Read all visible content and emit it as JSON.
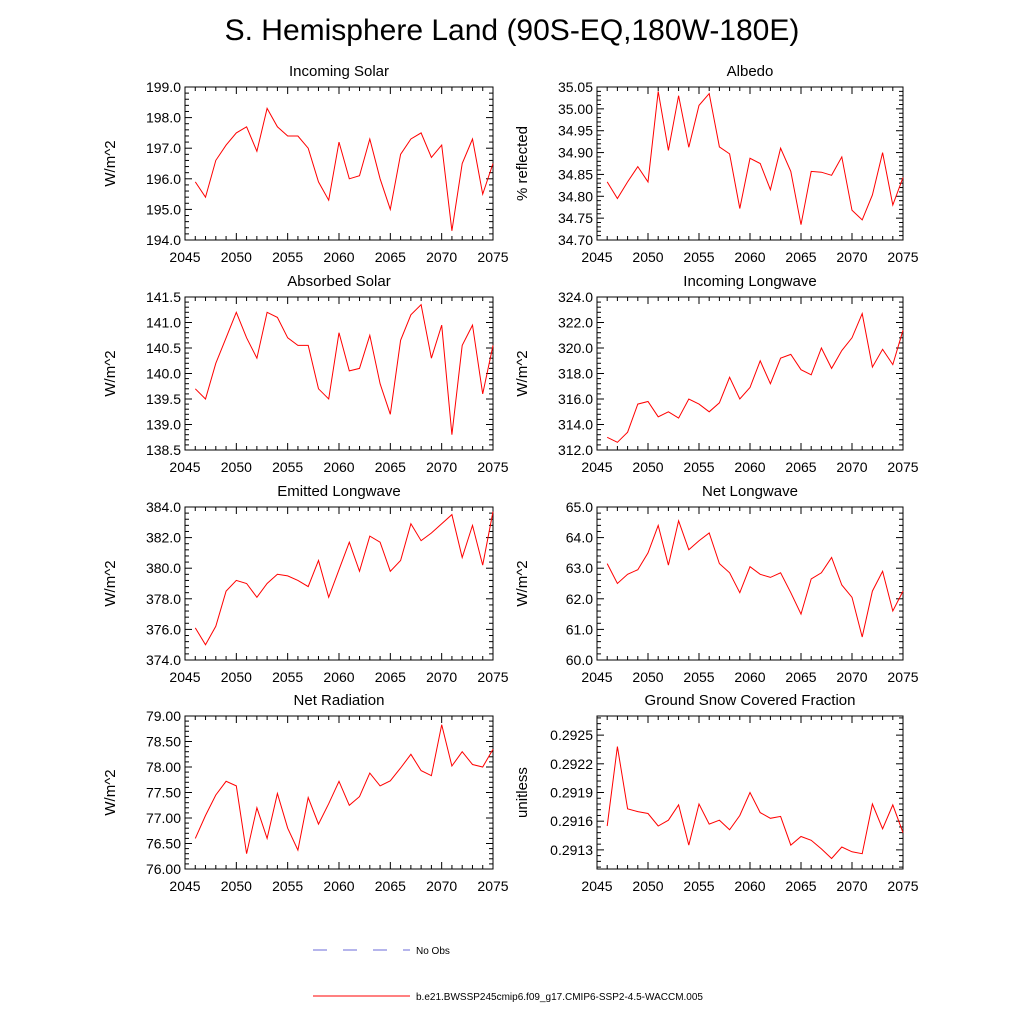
{
  "page_title": "S. Hemisphere Land (90S-EQ,180W-180E)",
  "chart_data": [
    {
      "type": "line",
      "title": "Incoming Solar",
      "ylabel": "W/m^2",
      "xlim": [
        2045,
        2075
      ],
      "ylim": [
        194.0,
        199.0
      ],
      "yticks": [
        "194.0",
        "195.0",
        "196.0",
        "197.0",
        "198.0",
        "199.0"
      ],
      "xticks": [
        "2045",
        "2050",
        "2055",
        "2060",
        "2065",
        "2070",
        "2075"
      ],
      "x": [
        2046,
        2047,
        2048,
        2049,
        2050,
        2051,
        2052,
        2053,
        2054,
        2055,
        2056,
        2057,
        2058,
        2059,
        2060,
        2061,
        2062,
        2063,
        2064,
        2065,
        2066,
        2067,
        2068,
        2069,
        2070,
        2071,
        2072,
        2073,
        2074,
        2075
      ],
      "series": [
        {
          "name": "b.e21.BWSSP245cmip6.f09_g17.CMIP6-SSP2-4.5-WACCM.005",
          "values": [
            195.9,
            195.4,
            196.6,
            197.1,
            197.5,
            197.7,
            196.9,
            198.3,
            197.7,
            197.4,
            197.4,
            197.0,
            195.9,
            195.3,
            197.2,
            196.0,
            196.1,
            197.3,
            196.0,
            195.0,
            196.8,
            197.3,
            197.5,
            196.7,
            197.1,
            194.3,
            196.5,
            197.3,
            195.5,
            196.5
          ]
        }
      ]
    },
    {
      "type": "line",
      "title": "Albedo",
      "ylabel": "% reflected",
      "xlim": [
        2045,
        2075
      ],
      "ylim": [
        34.7,
        35.05
      ],
      "yticks": [
        "34.70",
        "34.75",
        "34.80",
        "34.85",
        "34.90",
        "34.95",
        "35.00",
        "35.05"
      ],
      "xticks": [
        "2045",
        "2050",
        "2055",
        "2060",
        "2065",
        "2070",
        "2075"
      ],
      "x": [
        2046,
        2047,
        2048,
        2049,
        2050,
        2051,
        2052,
        2053,
        2054,
        2055,
        2056,
        2057,
        2058,
        2059,
        2060,
        2061,
        2062,
        2063,
        2064,
        2065,
        2066,
        2067,
        2068,
        2069,
        2070,
        2071,
        2072,
        2073,
        2074,
        2075
      ],
      "series": [
        {
          "name": "b.e21.BWSSP245cmip6.f09_g17.CMIP6-SSP2-4.5-WACCM.005",
          "values": [
            34.833,
            34.795,
            34.833,
            34.868,
            34.833,
            35.04,
            34.905,
            35.03,
            34.912,
            35.008,
            35.035,
            34.913,
            34.897,
            34.772,
            34.887,
            34.875,
            34.815,
            34.91,
            34.857,
            34.735,
            34.857,
            34.855,
            34.848,
            34.89,
            34.768,
            34.746,
            34.803,
            34.9,
            34.78,
            34.843
          ]
        }
      ]
    },
    {
      "type": "line",
      "title": "Absorbed Solar",
      "ylabel": "W/m^2",
      "xlim": [
        2045,
        2075
      ],
      "ylim": [
        138.5,
        141.5
      ],
      "yticks": [
        "138.5",
        "139.0",
        "139.5",
        "140.0",
        "140.5",
        "141.0",
        "141.5"
      ],
      "xticks": [
        "2045",
        "2050",
        "2055",
        "2060",
        "2065",
        "2070",
        "2075"
      ],
      "x": [
        2046,
        2047,
        2048,
        2049,
        2050,
        2051,
        2052,
        2053,
        2054,
        2055,
        2056,
        2057,
        2058,
        2059,
        2060,
        2061,
        2062,
        2063,
        2064,
        2065,
        2066,
        2067,
        2068,
        2069,
        2070,
        2071,
        2072,
        2073,
        2074,
        2075
      ],
      "series": [
        {
          "name": "b.e21.BWSSP245cmip6.f09_g17.CMIP6-SSP2-4.5-WACCM.005",
          "values": [
            139.7,
            139.5,
            140.2,
            140.7,
            141.2,
            140.7,
            140.3,
            141.2,
            141.1,
            140.7,
            140.55,
            140.55,
            139.7,
            139.5,
            140.8,
            140.05,
            140.1,
            140.75,
            139.8,
            139.2,
            140.65,
            141.15,
            141.35,
            140.3,
            140.95,
            138.8,
            140.55,
            140.95,
            139.6,
            140.55
          ]
        }
      ]
    },
    {
      "type": "line",
      "title": "Incoming Longwave",
      "ylabel": "W/m^2",
      "xlim": [
        2045,
        2075
      ],
      "ylim": [
        312.0,
        324.0
      ],
      "yticks": [
        "312.0",
        "314.0",
        "316.0",
        "318.0",
        "320.0",
        "322.0",
        "324.0"
      ],
      "xticks": [
        "2045",
        "2050",
        "2055",
        "2060",
        "2065",
        "2070",
        "2075"
      ],
      "x": [
        2046,
        2047,
        2048,
        2049,
        2050,
        2051,
        2052,
        2053,
        2054,
        2055,
        2056,
        2057,
        2058,
        2059,
        2060,
        2061,
        2062,
        2063,
        2064,
        2065,
        2066,
        2067,
        2068,
        2069,
        2070,
        2071,
        2072,
        2073,
        2074,
        2075
      ],
      "series": [
        {
          "name": "b.e21.BWSSP245cmip6.f09_g17.CMIP6-SSP2-4.5-WACCM.005",
          "values": [
            313.0,
            312.6,
            313.4,
            315.6,
            315.8,
            314.6,
            315.0,
            314.5,
            316.0,
            315.6,
            315.0,
            315.7,
            317.7,
            316.0,
            316.9,
            319.0,
            317.2,
            319.2,
            319.5,
            318.3,
            317.9,
            320.0,
            318.4,
            319.8,
            320.8,
            322.7,
            318.5,
            319.9,
            318.7,
            321.4
          ]
        }
      ]
    },
    {
      "type": "line",
      "title": "Emitted Longwave",
      "ylabel": "W/m^2",
      "xlim": [
        2045,
        2075
      ],
      "ylim": [
        374.0,
        384.0
      ],
      "yticks": [
        "374.0",
        "376.0",
        "378.0",
        "380.0",
        "382.0",
        "384.0"
      ],
      "xticks": [
        "2045",
        "2050",
        "2055",
        "2060",
        "2065",
        "2070",
        "2075"
      ],
      "x": [
        2046,
        2047,
        2048,
        2049,
        2050,
        2051,
        2052,
        2053,
        2054,
        2055,
        2056,
        2057,
        2058,
        2059,
        2060,
        2061,
        2062,
        2063,
        2064,
        2065,
        2066,
        2067,
        2068,
        2069,
        2070,
        2071,
        2072,
        2073,
        2074,
        2075
      ],
      "series": [
        {
          "name": "b.e21.BWSSP245cmip6.f09_g17.CMIP6-SSP2-4.5-WACCM.005",
          "values": [
            376.1,
            375.0,
            376.2,
            378.5,
            379.2,
            379.0,
            378.1,
            379.0,
            379.6,
            379.5,
            379.2,
            378.8,
            380.5,
            378.1,
            379.9,
            381.7,
            379.8,
            382.1,
            381.7,
            379.8,
            380.5,
            382.9,
            381.8,
            382.3,
            382.9,
            383.5,
            380.7,
            382.8,
            380.2,
            383.7
          ]
        }
      ]
    },
    {
      "type": "line",
      "title": "Net Longwave",
      "ylabel": "W/m^2",
      "xlim": [
        2045,
        2075
      ],
      "ylim": [
        60.0,
        65.0
      ],
      "yticks": [
        "60.0",
        "61.0",
        "62.0",
        "63.0",
        "64.0",
        "65.0"
      ],
      "xticks": [
        "2045",
        "2050",
        "2055",
        "2060",
        "2065",
        "2070",
        "2075"
      ],
      "x": [
        2046,
        2047,
        2048,
        2049,
        2050,
        2051,
        2052,
        2053,
        2054,
        2055,
        2056,
        2057,
        2058,
        2059,
        2060,
        2061,
        2062,
        2063,
        2064,
        2065,
        2066,
        2067,
        2068,
        2069,
        2070,
        2071,
        2072,
        2073,
        2074,
        2075
      ],
      "series": [
        {
          "name": "b.e21.BWSSP245cmip6.f09_g17.CMIP6-SSP2-4.5-WACCM.005",
          "values": [
            63.15,
            62.5,
            62.8,
            62.95,
            63.5,
            64.4,
            63.1,
            64.55,
            63.6,
            63.9,
            64.15,
            63.15,
            62.85,
            62.2,
            63.05,
            62.8,
            62.7,
            62.85,
            62.2,
            61.5,
            62.65,
            62.85,
            63.35,
            62.45,
            62.05,
            60.75,
            62.25,
            62.9,
            61.6,
            62.25
          ]
        }
      ]
    },
    {
      "type": "line",
      "title": "Net Radiation",
      "ylabel": "W/m^2",
      "xlim": [
        2045,
        2075
      ],
      "ylim": [
        76.0,
        79.0
      ],
      "yticks": [
        "76.00",
        "76.50",
        "77.00",
        "77.50",
        "78.00",
        "78.50",
        "79.00"
      ],
      "xticks": [
        "2045",
        "2050",
        "2055",
        "2060",
        "2065",
        "2070",
        "2075"
      ],
      "x": [
        2046,
        2047,
        2048,
        2049,
        2050,
        2051,
        2052,
        2053,
        2054,
        2055,
        2056,
        2057,
        2058,
        2059,
        2060,
        2061,
        2062,
        2063,
        2064,
        2065,
        2066,
        2067,
        2068,
        2069,
        2070,
        2071,
        2072,
        2073,
        2074,
        2075
      ],
      "series": [
        {
          "name": "b.e21.BWSSP245cmip6.f09_g17.CMIP6-SSP2-4.5-WACCM.005",
          "values": [
            76.6,
            77.05,
            77.45,
            77.72,
            77.63,
            76.3,
            77.2,
            76.6,
            77.48,
            76.8,
            76.37,
            77.4,
            76.88,
            77.28,
            77.72,
            77.25,
            77.42,
            77.88,
            77.63,
            77.73,
            77.98,
            78.25,
            77.93,
            77.83,
            78.83,
            78.02,
            78.3,
            78.05,
            78.0,
            78.35
          ]
        }
      ]
    },
    {
      "type": "line",
      "title": "Ground Snow Covered Fraction",
      "ylabel": "unitless",
      "xlim": [
        2045,
        2075
      ],
      "ylim": [
        0.2911,
        0.2927
      ],
      "yticks": [
        "0.2913",
        "0.2916",
        "0.2919",
        "0.2922",
        "0.2925"
      ],
      "ytick_values": [
        0.2913,
        0.2916,
        0.2919,
        0.2922,
        0.2925
      ],
      "xticks": [
        "2045",
        "2050",
        "2055",
        "2060",
        "2065",
        "2070",
        "2075"
      ],
      "x": [
        2046,
        2047,
        2048,
        2049,
        2050,
        2051,
        2052,
        2053,
        2054,
        2055,
        2056,
        2057,
        2058,
        2059,
        2060,
        2061,
        2062,
        2063,
        2064,
        2065,
        2066,
        2067,
        2068,
        2069,
        2070,
        2071,
        2072,
        2073,
        2074,
        2075
      ],
      "series": [
        {
          "name": "b.e21.BWSSP245cmip6.f09_g17.CMIP6-SSP2-4.5-WACCM.005",
          "values": [
            0.29155,
            0.29238,
            0.29173,
            0.2917,
            0.29168,
            0.29155,
            0.29161,
            0.29177,
            0.29135,
            0.29178,
            0.29157,
            0.29161,
            0.29151,
            0.29166,
            0.2919,
            0.29169,
            0.29163,
            0.29165,
            0.29135,
            0.29144,
            0.2914,
            0.29131,
            0.29121,
            0.29133,
            0.29128,
            0.29126,
            0.29178,
            0.29152,
            0.29177,
            0.29148
          ]
        }
      ]
    }
  ],
  "legend": {
    "items": [
      {
        "label": "No Obs",
        "color": "#6b6bd9",
        "style": "dashed"
      },
      {
        "label": "b.e21.BWSSP245cmip6.f09_g17.CMIP6-SSP2-4.5-WACCM.005",
        "color": "#ff0000",
        "style": "solid"
      }
    ]
  }
}
